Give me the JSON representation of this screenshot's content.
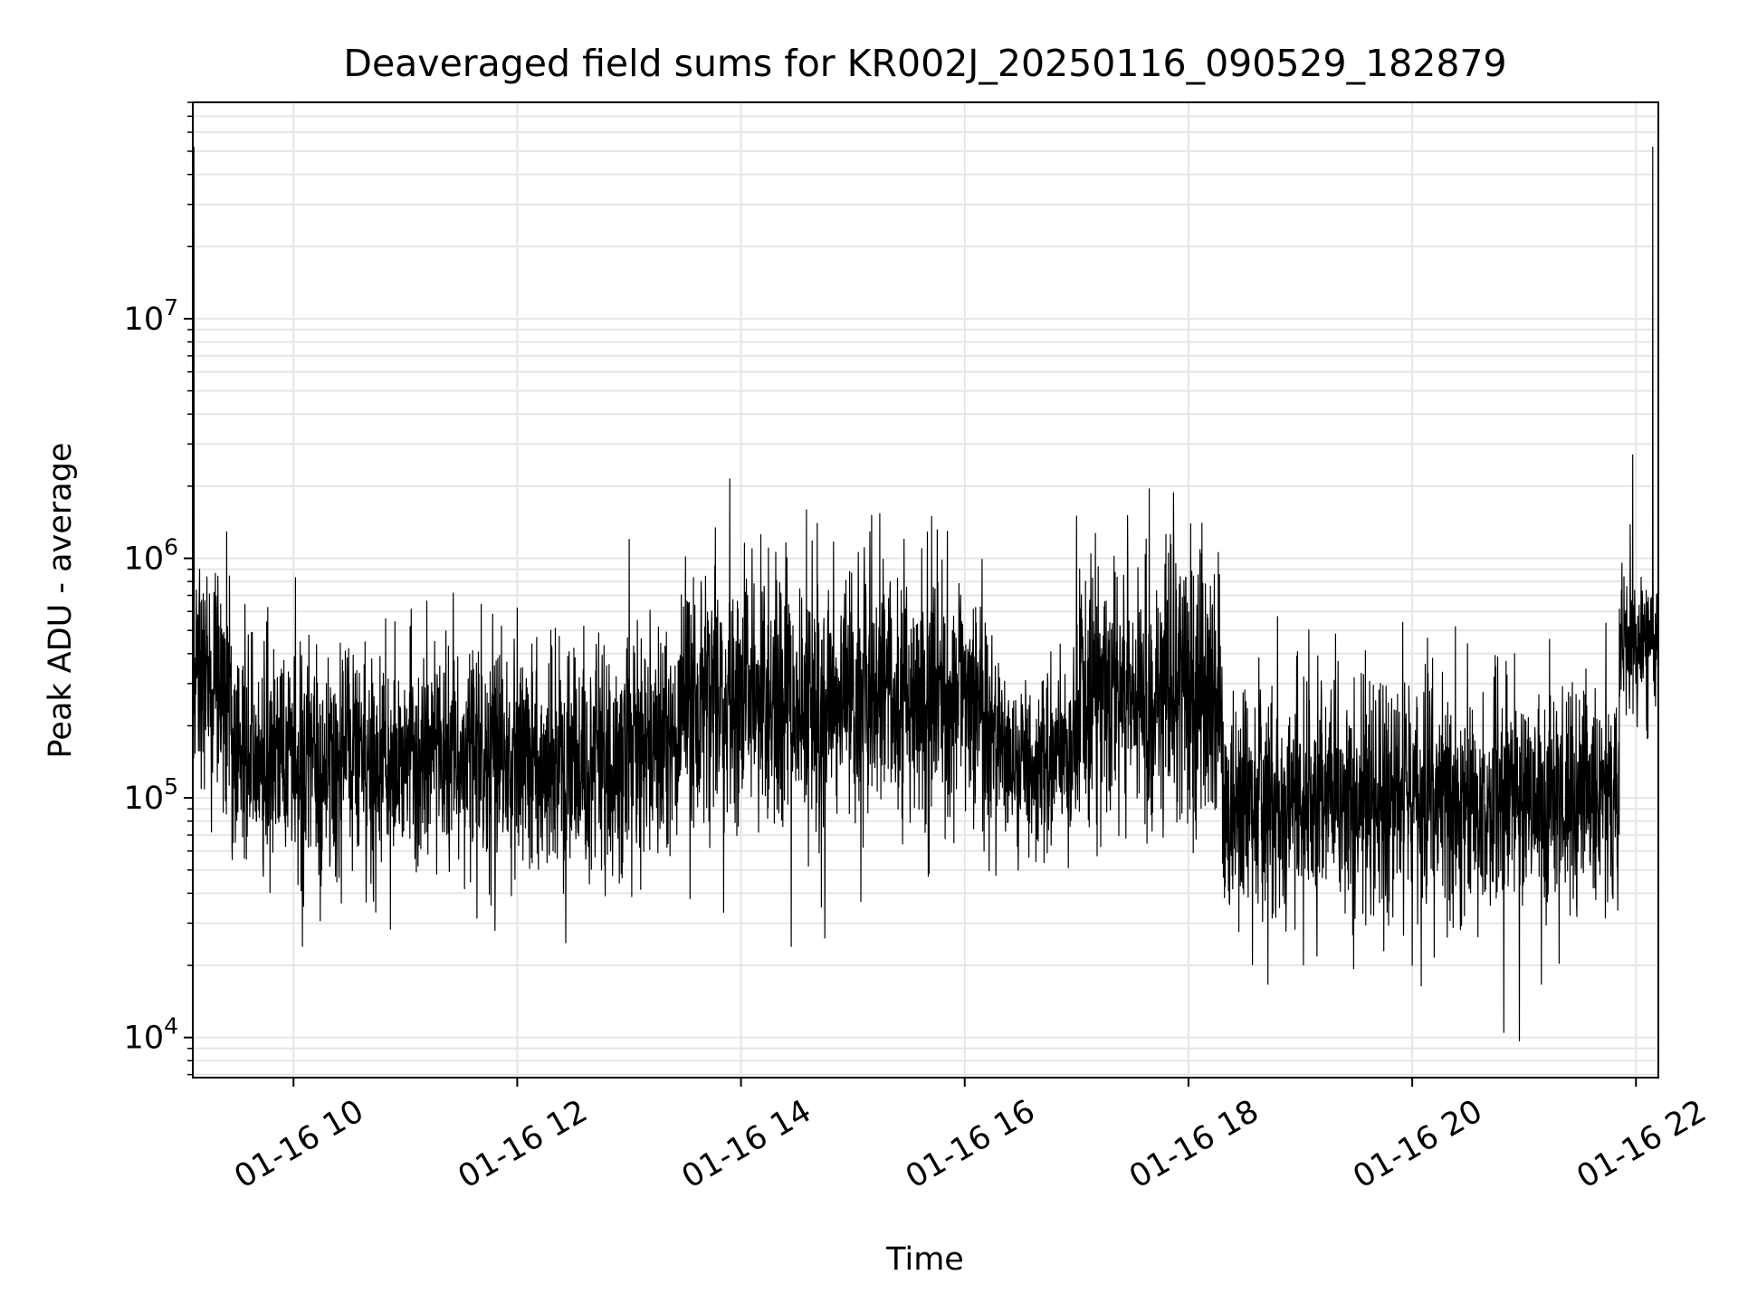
{
  "chart_data": {
    "type": "line",
    "title": "Deaveraged field sums for KR002J_20250116_090529_182879",
    "xlabel": "Time",
    "ylabel": "Peak ADU - average",
    "x_axis": {
      "kind": "datetime",
      "range_hours": [
        9.1,
        22.2
      ],
      "ticks": [
        {
          "hour": 10,
          "label": "01-16 10"
        },
        {
          "hour": 12,
          "label": "01-16 12"
        },
        {
          "hour": 14,
          "label": "01-16 14"
        },
        {
          "hour": 16,
          "label": "01-16 16"
        },
        {
          "hour": 18,
          "label": "01-16 18"
        },
        {
          "hour": 20,
          "label": "01-16 20"
        },
        {
          "hour": 22,
          "label": "01-16 22"
        }
      ]
    },
    "y_axis": {
      "scale": "log",
      "ylim": [
        6800,
        80000000
      ],
      "ticks": [
        {
          "value": 10000,
          "base": "10",
          "exp": "4"
        },
        {
          "value": 100000,
          "base": "10",
          "exp": "5"
        },
        {
          "value": 1000000,
          "base": "10",
          "exp": "6"
        },
        {
          "value": 10000000,
          "base": "10",
          "exp": "7"
        }
      ]
    },
    "grid": true,
    "line_color": "#000000",
    "series": [
      {
        "segments": [
          {
            "start": 9.1,
            "end": 9.45,
            "level": 290000,
            "spread": 0.23
          },
          {
            "start": 9.45,
            "end": 13.0,
            "level": 145000,
            "spread": 0.24
          },
          {
            "start": 13.0,
            "end": 13.45,
            "level": 175000,
            "spread": 0.25
          },
          {
            "start": 13.45,
            "end": 16.25,
            "level": 260000,
            "spread": 0.28
          },
          {
            "start": 16.25,
            "end": 17.0,
            "level": 140000,
            "spread": 0.18
          },
          {
            "start": 17.0,
            "end": 18.3,
            "level": 280000,
            "spread": 0.28
          },
          {
            "start": 18.3,
            "end": 21.85,
            "level": 95000,
            "spread": 0.25
          },
          {
            "start": 21.85,
            "end": 22.2,
            "level": 450000,
            "spread": 0.14
          }
        ],
        "sample_count": 5200,
        "spikes": [
          {
            "hour": 9.11,
            "value": 52000000
          },
          {
            "hour": 9.16,
            "value": 900000
          },
          {
            "hour": 10.08,
            "value": 24000
          },
          {
            "hour": 11.8,
            "value": 28000
          },
          {
            "hour": 12.0,
            "value": 620000
          },
          {
            "hour": 13.0,
            "value": 1200000
          },
          {
            "hour": 14.45,
            "value": 24000
          },
          {
            "hour": 14.68,
            "value": 1400000
          },
          {
            "hour": 14.75,
            "value": 26000
          },
          {
            "hour": 17.0,
            "value": 1500000
          },
          {
            "hour": 17.65,
            "value": 1950000
          },
          {
            "hour": 18.12,
            "value": 1400000
          },
          {
            "hour": 20.0,
            "value": 20000
          },
          {
            "hour": 20.82,
            "value": 10500
          },
          {
            "hour": 21.97,
            "value": 2700000
          },
          {
            "hour": 22.15,
            "value": 52000000
          }
        ]
      }
    ]
  }
}
